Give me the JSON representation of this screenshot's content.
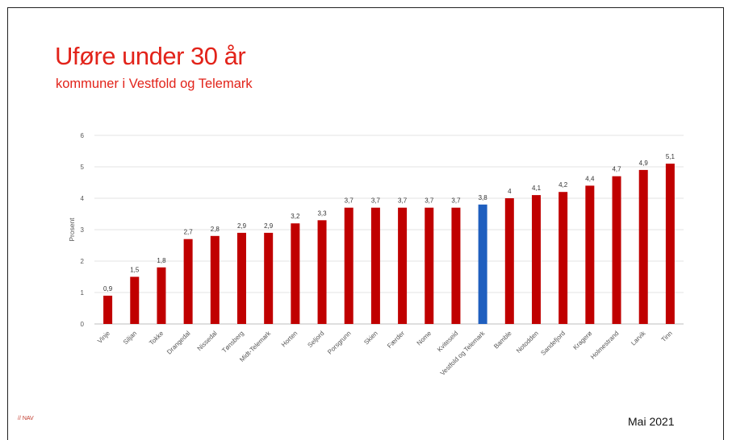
{
  "slide": {
    "footer_logo": "// NAV",
    "footer_date": "Mai 2021"
  },
  "chart_data": {
    "type": "bar",
    "title": "Uføre under 30 år",
    "subtitle": "kommuner  i Vestfold og Telemark",
    "xlabel": "",
    "ylabel": "Prosent",
    "ylim": [
      0,
      6
    ],
    "yticks": [
      0,
      1,
      2,
      3,
      4,
      5,
      6
    ],
    "grid": true,
    "legend": "none",
    "bar_color": "#c00000",
    "highlight_color": "#1f5fbf",
    "highlight_category": "Vestfold og Telemark",
    "categories": [
      "Vinje",
      "Siljan",
      "Tokke",
      "Drangedal",
      "Nissedal",
      "Tønsberg",
      "Midt-Telemark",
      "Horten",
      "Seljord",
      "Porsgrunn",
      "Skien",
      "Færder",
      "Nome",
      "Kviteseid",
      "Vestfold og Telemark",
      "Bamble",
      "Notodden",
      "Sandefjord",
      "Kragerø",
      "Holmestrand",
      "Larvik",
      "Tinn"
    ],
    "values": [
      0.9,
      1.5,
      1.8,
      2.7,
      2.8,
      2.9,
      2.9,
      3.2,
      3.3,
      3.7,
      3.7,
      3.7,
      3.7,
      3.7,
      3.8,
      4,
      4.1,
      4.2,
      4.4,
      4.7,
      4.9,
      5.1
    ],
    "value_labels": [
      "0,9",
      "1,5",
      "1,8",
      "2,7",
      "2,8",
      "2,9",
      "2,9",
      "3,2",
      "3,3",
      "3,7",
      "3,7",
      "3,7",
      "3,7",
      "3,7",
      "3,8",
      "4",
      "4,1",
      "4,2",
      "4,4",
      "4,7",
      "4,9",
      "5,1"
    ]
  }
}
